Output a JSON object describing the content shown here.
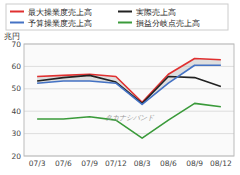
{
  "chart_data": {
    "type": "line",
    "categories": [
      "07/3",
      "07/6",
      "07/9",
      "07/12",
      "08/3",
      "08/6",
      "08/9",
      "08/12"
    ],
    "series": [
      {
        "name": "最大操業度売上高",
        "color": "#e03030",
        "values": [
          55.5,
          56.0,
          56.5,
          55.5,
          44.0,
          56.5,
          63.5,
          63.0
        ]
      },
      {
        "name": "実際売上高",
        "color": "#222222",
        "values": [
          53.5,
          55.0,
          56.0,
          53.0,
          43.5,
          55.5,
          55.0,
          51.0
        ]
      },
      {
        "name": "予算操業度売上高",
        "color": "#4472c4",
        "values": [
          52.5,
          53.5,
          53.5,
          52.5,
          43.0,
          52.5,
          60.5,
          60.5
        ]
      },
      {
        "name": "損益分岐点売上高",
        "color": "#3a9a3a",
        "values": [
          36.5,
          36.5,
          37.5,
          36.0,
          28.0,
          36.0,
          43.5,
          42.0
        ]
      }
    ],
    "ylim": [
      20,
      70
    ],
    "yticks": [
      20,
      30,
      40,
      50,
      60,
      70
    ],
    "ylabel": "兆円",
    "annotations": [
      "タカナシバンド"
    ],
    "grid": true,
    "legend": "top"
  }
}
